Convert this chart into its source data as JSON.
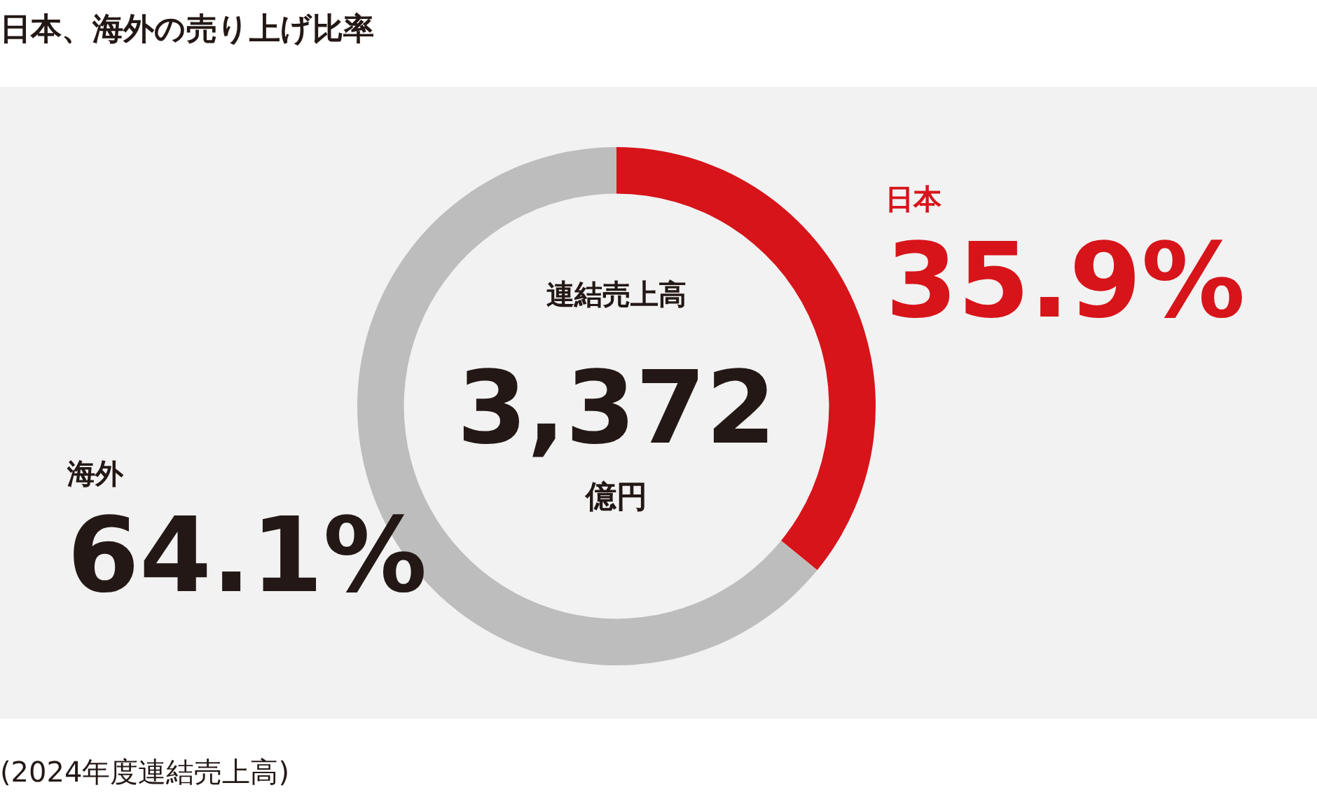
{
  "chart_data": {
    "type": "donut",
    "title": "日本、海外の売り上げ比率",
    "categories": [
      "日本",
      "海外"
    ],
    "values": [
      35.9,
      64.1
    ],
    "colors": [
      "#d7141a",
      "#bdbdbd"
    ],
    "value_labels": [
      "35.9%",
      "64.1%"
    ],
    "legend": false,
    "annotations": [
      "連結売上高",
      "3,372",
      "億円",
      "(2024年度連結売上高)"
    ]
  }
}
